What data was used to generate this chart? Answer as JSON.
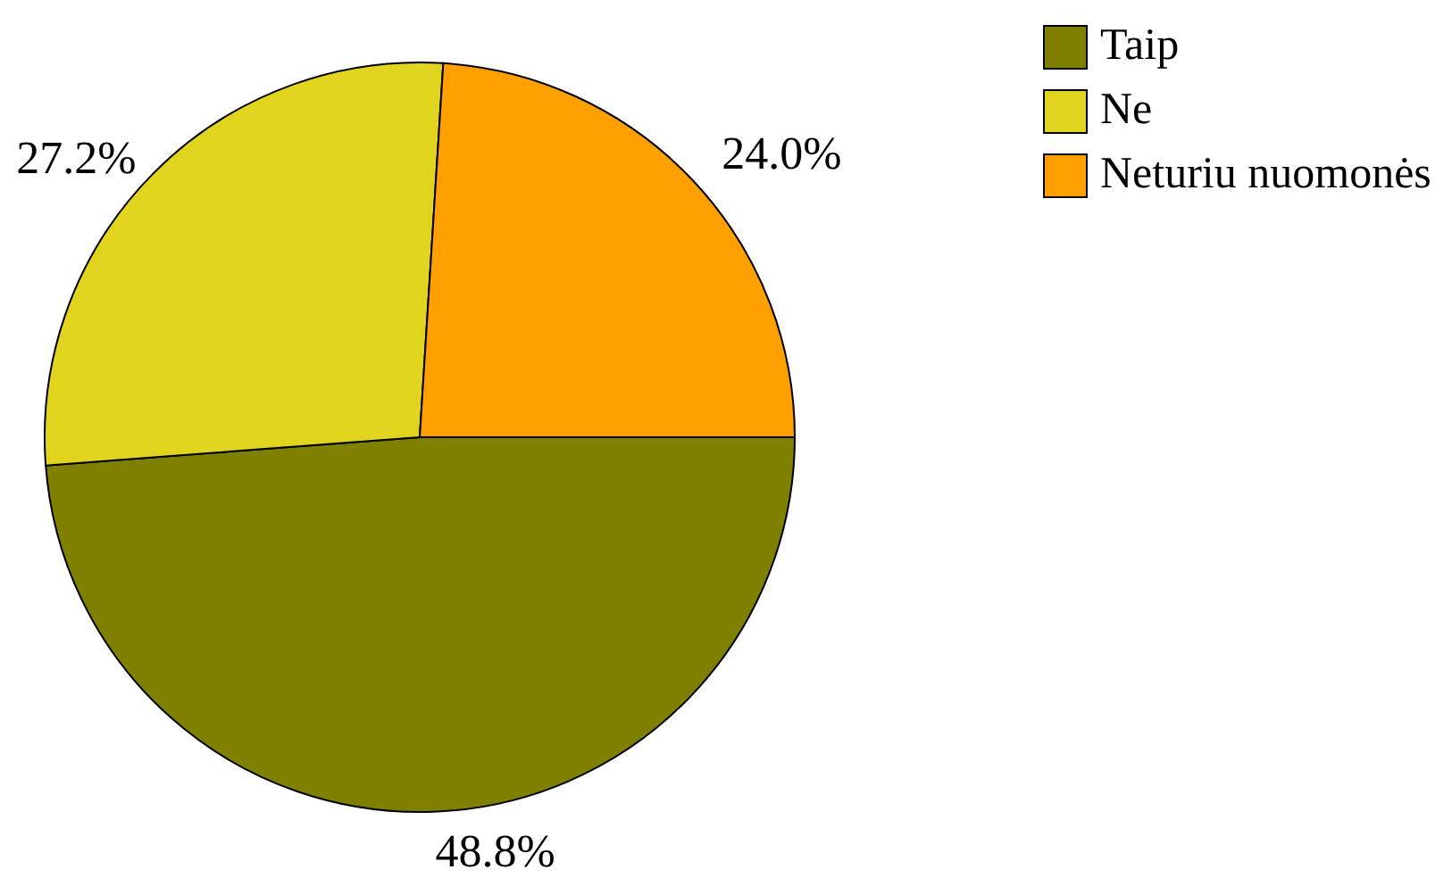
{
  "chart_data": {
    "type": "pie",
    "categories": [
      "Taip",
      "Ne",
      "Neturiu nuomonės"
    ],
    "values": [
      48.8,
      27.2,
      24.0
    ],
    "colors": [
      "#808000",
      "#e0d41f",
      "#ff9f00"
    ],
    "value_labels": [
      "48.8%",
      "27.2%",
      "24.0%"
    ],
    "legend": "top right"
  }
}
